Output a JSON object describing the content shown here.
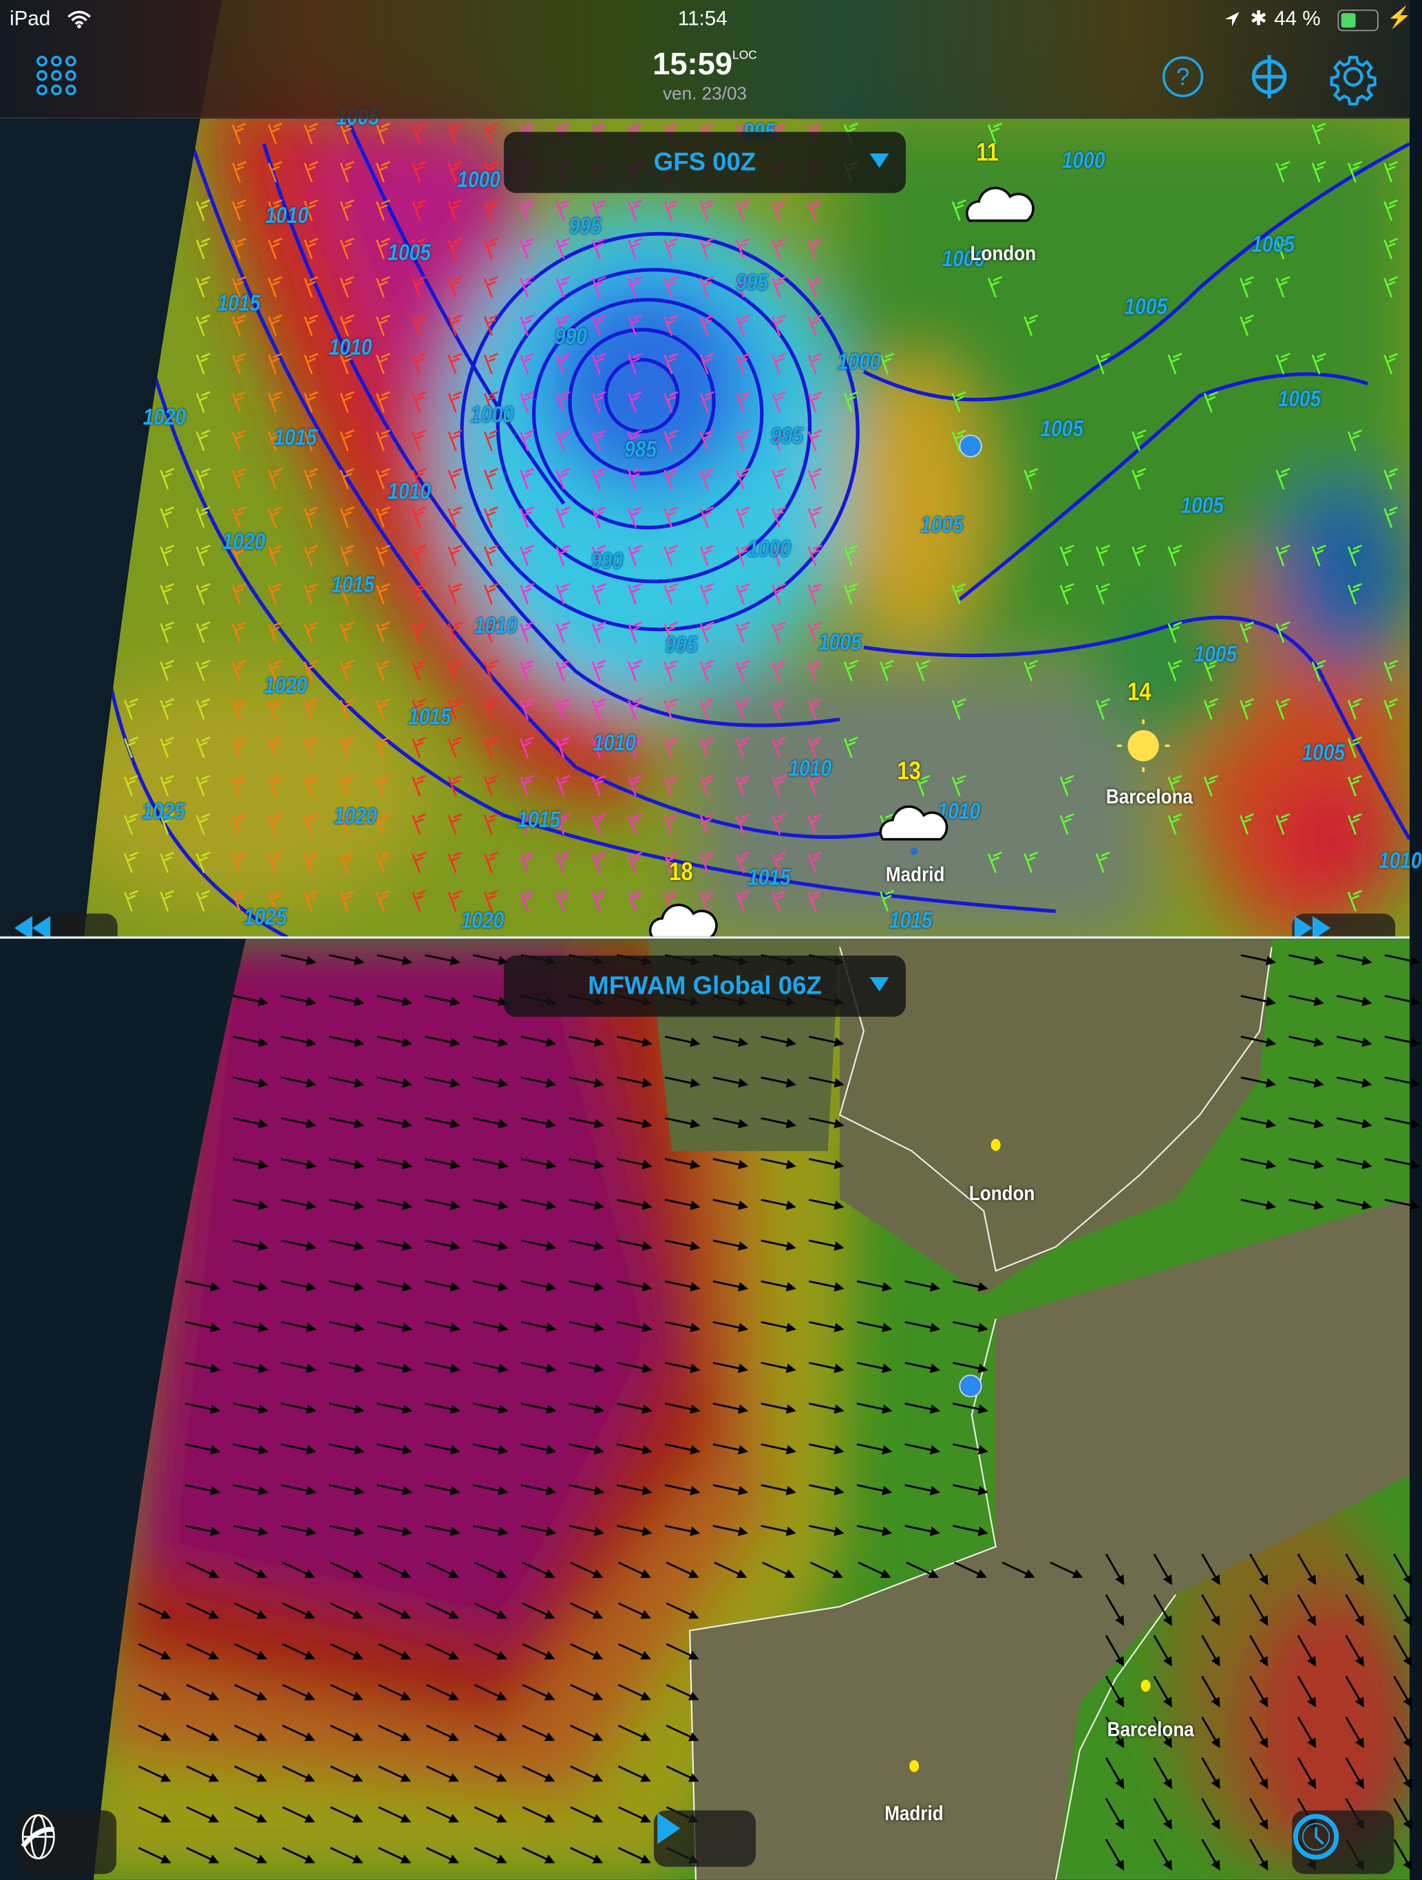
{
  "status_bar": {
    "device": "iPad",
    "time": "11:54",
    "battery_percent": "44 %",
    "battery_level": 0.44,
    "battery_color": "#4cd964"
  },
  "header": {
    "time": "15:59",
    "time_suffix": "LOC",
    "date": "ven. 23/03",
    "accent_color": "#1aa7f0",
    "icons": [
      "grid-menu-icon",
      "help-icon",
      "crosshair-locate-icon",
      "gear-icon"
    ]
  },
  "top_map": {
    "model": "GFS 00Z",
    "isobar_labels": [
      "1005",
      "995",
      "1000",
      "1010",
      "995",
      "1005",
      "995",
      "1015",
      "990",
      "1010",
      "1000",
      "1020",
      "1015",
      "1000",
      "985",
      "1005",
      "995",
      "1010",
      "1005",
      "1005",
      "1020",
      "1015",
      "1010",
      "1000",
      "990",
      "1005",
      "1005",
      "995",
      "1020",
      "1015",
      "1010",
      "1010",
      "1025",
      "1020",
      "1015",
      "1010",
      "1005",
      "1015",
      "1025",
      "1020",
      "1015",
      "1000",
      "1000",
      "1005",
      "1005",
      "1005",
      "1010"
    ],
    "temperatures": [
      "11",
      "14",
      "13",
      "18"
    ],
    "cities": [
      "London",
      "Barcelona",
      "Madrid"
    ]
  },
  "bottom_map": {
    "model": "MFWAM Global 06Z",
    "cities": [
      "London",
      "Barcelona",
      "Madrid"
    ]
  },
  "controls": {
    "rewind": "rewind-icon",
    "fast_forward": "fast-forward-icon",
    "globe": "globe-icon",
    "play": "play-icon",
    "clock": "clock-icon"
  }
}
